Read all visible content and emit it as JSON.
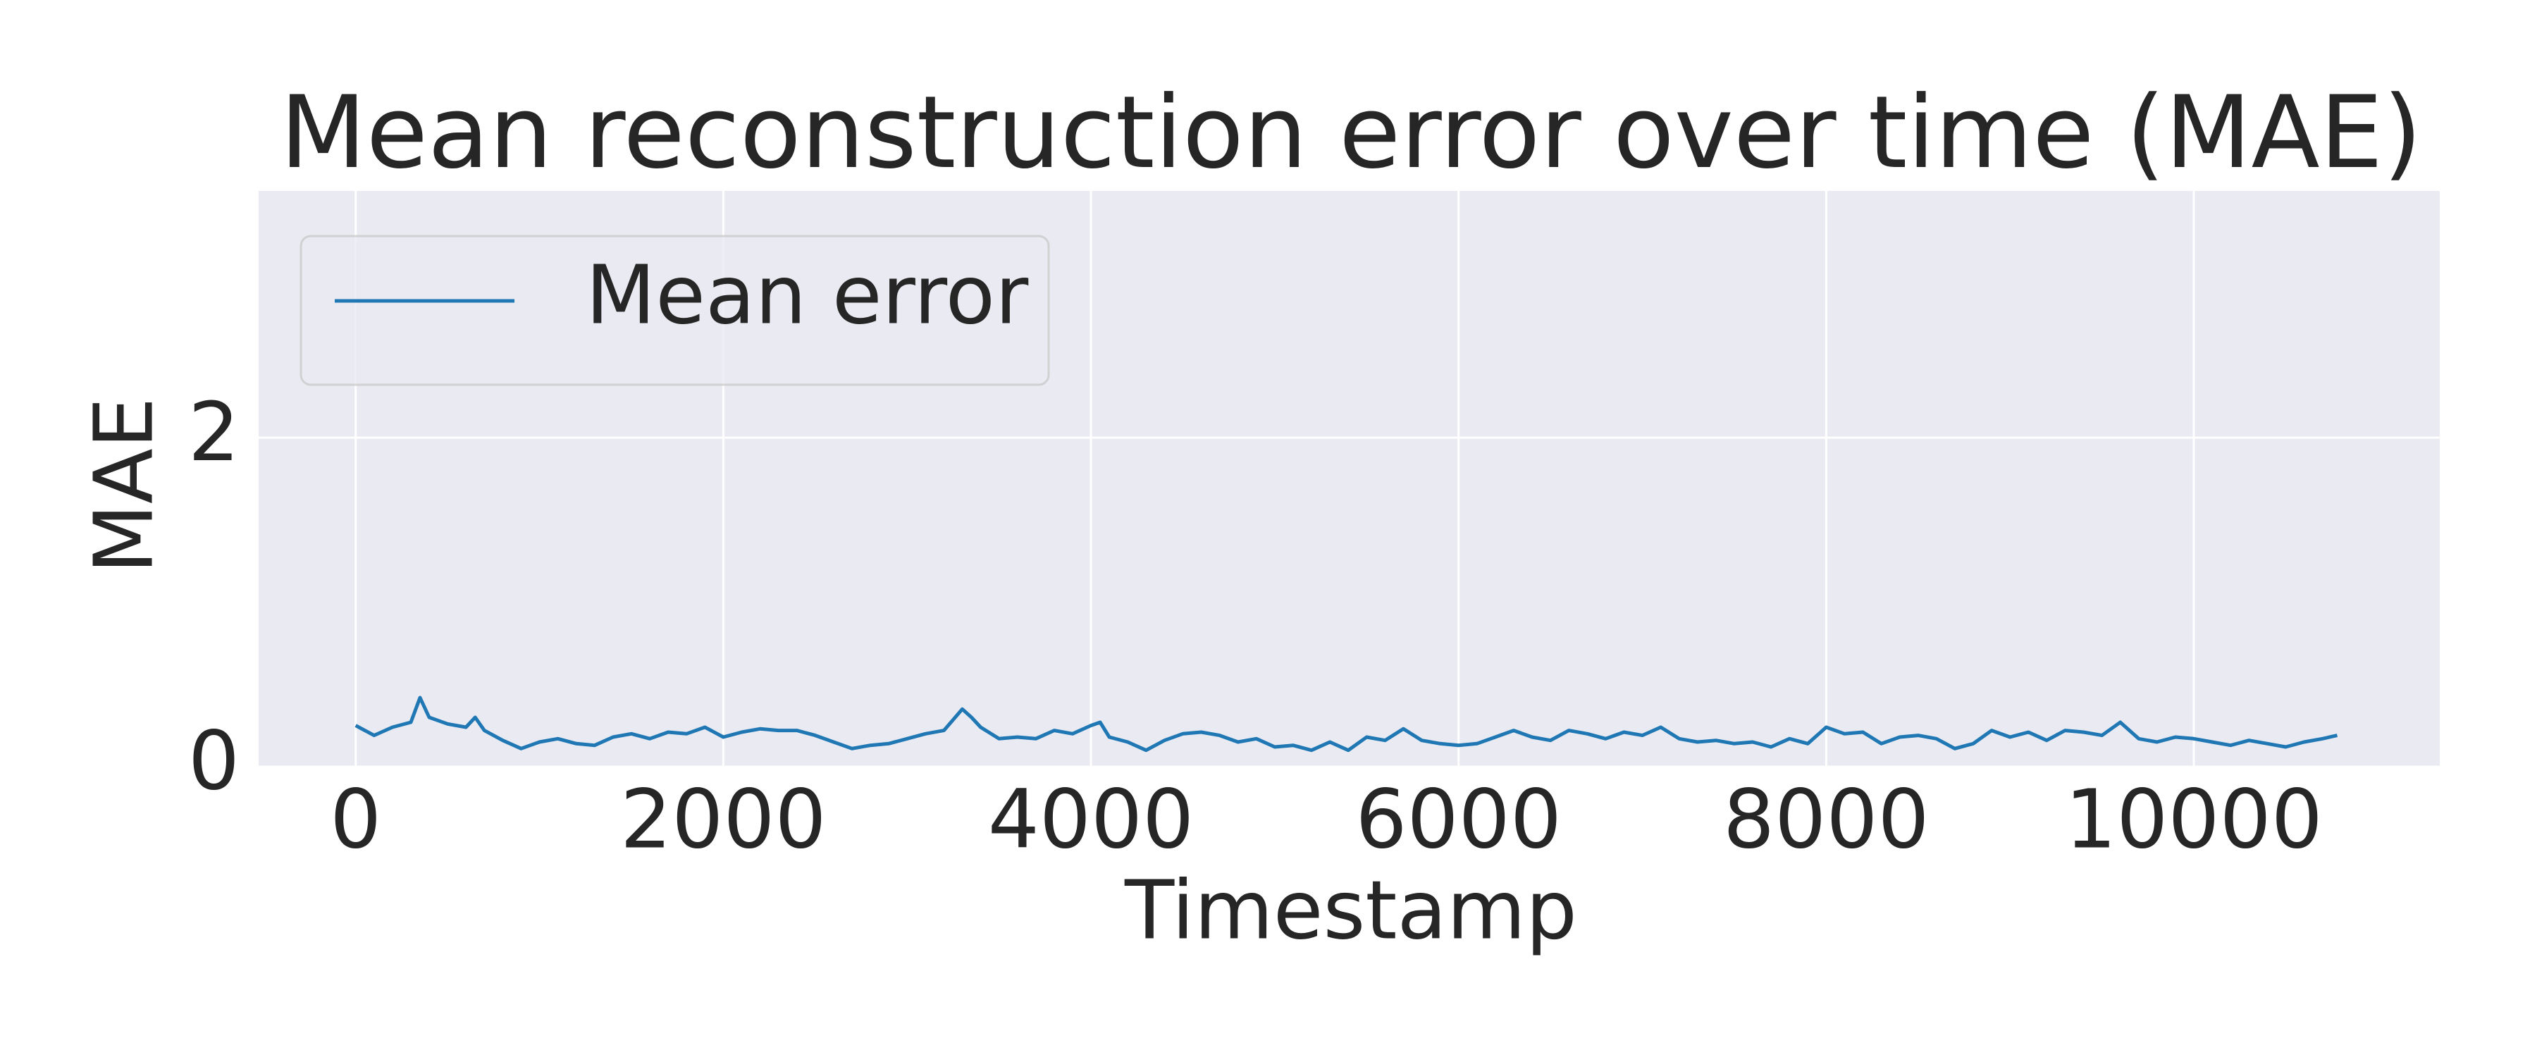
{
  "chart_data": {
    "type": "line",
    "title": "Mean reconstruction error over time (MAE)",
    "x_label": "Timestamp",
    "y_label": "MAE",
    "x": [
      0,
      100,
      200,
      300,
      350,
      400,
      500,
      600,
      650,
      700,
      800,
      900,
      1000,
      1100,
      1200,
      1300,
      1400,
      1500,
      1600,
      1700,
      1800,
      1900,
      2000,
      2100,
      2200,
      2300,
      2400,
      2500,
      2600,
      2700,
      2800,
      2900,
      3000,
      3100,
      3200,
      3300,
      3350,
      3400,
      3500,
      3600,
      3700,
      3800,
      3900,
      4000,
      4050,
      4100,
      4200,
      4300,
      4400,
      4500,
      4600,
      4700,
      4800,
      4900,
      5000,
      5100,
      5200,
      5300,
      5400,
      5500,
      5600,
      5700,
      5800,
      5900,
      6000,
      6100,
      6200,
      6300,
      6400,
      6500,
      6600,
      6700,
      6800,
      6900,
      7000,
      7100,
      7200,
      7300,
      7400,
      7500,
      7600,
      7700,
      7800,
      7900,
      8000,
      8100,
      8200,
      8300,
      8400,
      8500,
      8600,
      8700,
      8800,
      8900,
      9000,
      9100,
      9200,
      9300,
      9400,
      9500,
      9600,
      9700,
      9800,
      9900,
      10000,
      10100,
      10200,
      10300,
      10400,
      10500,
      10600,
      10700,
      10780
    ],
    "series": [
      {
        "name": "Mean error",
        "color": "#1f77b4",
        "values": [
          0.25,
          0.19,
          0.24,
          0.27,
          0.42,
          0.3,
          0.26,
          0.24,
          0.3,
          0.22,
          0.16,
          0.11,
          0.15,
          0.17,
          0.14,
          0.13,
          0.18,
          0.2,
          0.17,
          0.21,
          0.2,
          0.24,
          0.18,
          0.21,
          0.23,
          0.22,
          0.22,
          0.19,
          0.15,
          0.11,
          0.13,
          0.14,
          0.17,
          0.2,
          0.22,
          0.35,
          0.3,
          0.24,
          0.17,
          0.18,
          0.17,
          0.22,
          0.2,
          0.25,
          0.27,
          0.18,
          0.15,
          0.1,
          0.16,
          0.2,
          0.21,
          0.19,
          0.15,
          0.17,
          0.12,
          0.13,
          0.1,
          0.15,
          0.1,
          0.18,
          0.16,
          0.23,
          0.16,
          0.14,
          0.13,
          0.14,
          0.18,
          0.22,
          0.18,
          0.16,
          0.22,
          0.2,
          0.17,
          0.21,
          0.19,
          0.24,
          0.17,
          0.15,
          0.16,
          0.14,
          0.15,
          0.12,
          0.17,
          0.14,
          0.24,
          0.2,
          0.21,
          0.14,
          0.18,
          0.19,
          0.17,
          0.11,
          0.14,
          0.22,
          0.18,
          0.21,
          0.16,
          0.22,
          0.21,
          0.19,
          0.27,
          0.17,
          0.15,
          0.18,
          0.17,
          0.15,
          0.13,
          0.16,
          0.14,
          0.12,
          0.15,
          0.17,
          0.19
        ]
      }
    ],
    "xlim": [
      -528,
      11338
    ],
    "ylim": [
      0,
      3.5
    ],
    "xticks": [
      0,
      2000,
      4000,
      6000,
      8000,
      10000
    ],
    "yticks": [
      0,
      2
    ],
    "grid": true,
    "legend": "upper left"
  }
}
